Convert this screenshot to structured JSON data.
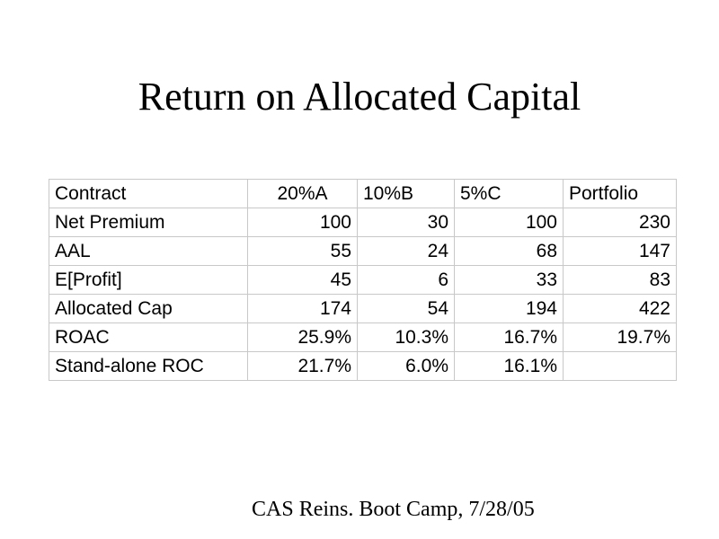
{
  "title": "Return on Allocated Capital",
  "table": {
    "header": [
      "Contract",
      "20%A",
      "10%B",
      "5%C",
      "Portfolio"
    ],
    "rows": [
      [
        "Net Premium",
        "100",
        "30",
        "100",
        "230"
      ],
      [
        "AAL",
        "55",
        "24",
        "68",
        "147"
      ],
      [
        "E[Profit]",
        "45",
        "6",
        "33",
        "83"
      ],
      [
        "Allocated Cap",
        "174",
        "54",
        "194",
        "422"
      ],
      [
        "ROAC",
        "25.9%",
        "10.3%",
        "16.7%",
        "19.7%"
      ],
      [
        "Stand-alone ROC",
        "21.7%",
        "6.0%",
        "16.1%",
        ""
      ]
    ]
  },
  "footer": "CAS Reins. Boot Camp, 7/28/05"
}
